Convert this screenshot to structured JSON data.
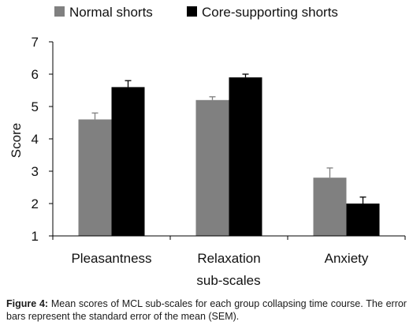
{
  "chart_data": {
    "type": "bar",
    "xlabel": "sub-scales",
    "ylabel": "Score",
    "ylim": [
      1,
      7
    ],
    "yticks": [
      1,
      2,
      3,
      4,
      5,
      6,
      7
    ],
    "grid": false,
    "legend_position": "top",
    "categories": [
      "Pleasantness",
      "Relaxation",
      "Anxiety"
    ],
    "series": [
      {
        "name": "Normal shorts",
        "color": "#808080",
        "values": [
          4.6,
          5.2,
          2.8
        ],
        "errors": [
          0.2,
          0.1,
          0.3
        ]
      },
      {
        "name": "Core-supporting shorts",
        "color": "#000000",
        "values": [
          5.6,
          5.9,
          2.0
        ],
        "errors": [
          0.2,
          0.1,
          0.2
        ]
      }
    ]
  },
  "caption": {
    "label": "Figure 4:",
    "text": "Mean scores of MCL sub-scales for each group collapsing time course. The error bars represent the standard error of the mean (SEM)."
  }
}
